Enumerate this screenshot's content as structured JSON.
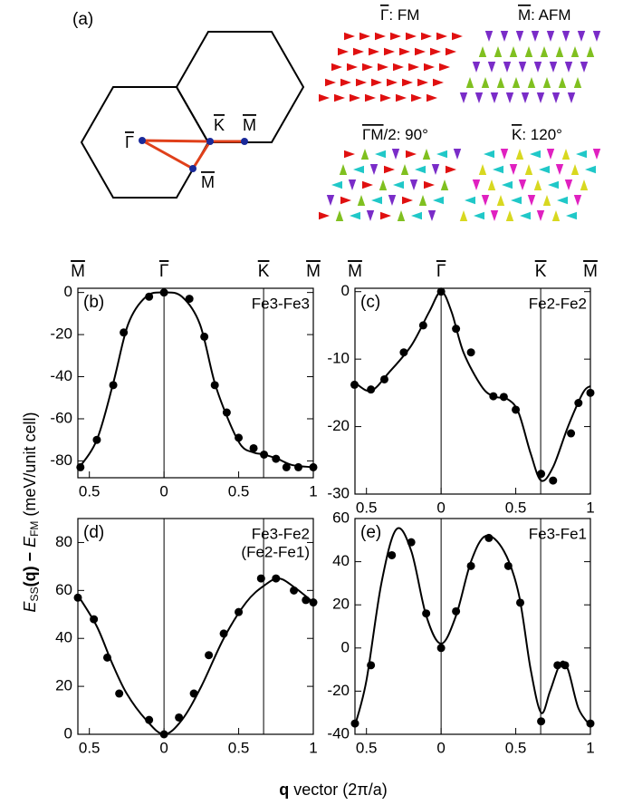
{
  "figure": {
    "ylabel": [
      "E",
      "SS",
      "(q) − ",
      "E",
      "FM",
      " (meV/unit cell)"
    ],
    "xlabel": [
      "q",
      " vector (2π/a)"
    ]
  },
  "diagram": {
    "tag": "(a)",
    "labels": [
      {
        "symbol": "Γ",
        "text": ""
      },
      {
        "symbol": "K",
        "text": ""
      },
      {
        "symbol": "M",
        "text": ""
      },
      {
        "symbol": "M",
        "text": ""
      }
    ],
    "configs": [
      {
        "symbol": "Γ",
        "text": ": FM"
      },
      {
        "symbol": "M",
        "text": ": AFM"
      },
      {
        "symbol": "ΓM",
        "text": "/2: 90°"
      },
      {
        "symbol": "K",
        "text": ": 120°"
      }
    ]
  },
  "chart_data": [
    {
      "type": "line",
      "tag": "(b)",
      "name": [
        "Fe3-Fe3"
      ],
      "xlim": [
        -0.577,
        1
      ],
      "xticks": [
        {
          "value": -0.5,
          "label": "0.5"
        },
        0,
        0.5,
        1
      ],
      "ylim": [
        -88,
        2
      ],
      "yticks": [
        -80,
        -60,
        -40,
        -20,
        0
      ],
      "vlines": [
        0,
        0.667
      ],
      "top_labels": [
        {
          "value": -0.577,
          "label": "M"
        },
        {
          "value": 0,
          "label": "Γ"
        },
        {
          "value": 0.667,
          "label": "K"
        },
        {
          "value": 1,
          "label": "M"
        }
      ],
      "points": {
        "x": [
          -0.56,
          -0.45,
          -0.34,
          -0.27,
          -0.1,
          0,
          0.17,
          0.27,
          0.34,
          0.42,
          0.5,
          0.6,
          0.67,
          0.75,
          0.82,
          0.9,
          1
        ],
        "y": [
          -83,
          -70,
          -44,
          -19,
          -2,
          0,
          -3,
          -21,
          -44,
          -57,
          -69,
          -74,
          -77,
          -79,
          -83,
          -83,
          -83
        ]
      },
      "curve": {
        "x": [
          -0.577,
          -0.45,
          -0.34,
          -0.24,
          -0.12,
          0,
          0.12,
          0.24,
          0.34,
          0.44,
          0.52,
          0.6,
          0.67,
          0.76,
          0.86,
          1
        ],
        "y": [
          -84,
          -70,
          -43,
          -15,
          -2,
          0,
          -2,
          -15,
          -43,
          -62,
          -73,
          -76,
          -77,
          -79,
          -82,
          -83
        ]
      },
      "color": "#000000"
    },
    {
      "type": "line",
      "tag": "(c)",
      "name": [
        "Fe2-Fe2"
      ],
      "xlim": [
        -0.577,
        1
      ],
      "xticks": [
        {
          "value": -0.5,
          "label": "0.5"
        },
        0,
        0.5,
        1
      ],
      "ylim": [
        -30,
        0.5
      ],
      "yticks": [
        -30,
        -20,
        -10,
        0
      ],
      "vlines": [
        0,
        0.667
      ],
      "top_labels": [
        {
          "value": -0.577,
          "label": "M"
        },
        {
          "value": 0,
          "label": "Γ"
        },
        {
          "value": 0.667,
          "label": "K"
        },
        {
          "value": 1,
          "label": "M"
        }
      ],
      "points": {
        "x": [
          -0.58,
          -0.47,
          -0.38,
          -0.25,
          -0.12,
          0,
          0.1,
          0.2,
          0.35,
          0.42,
          0.5,
          0.67,
          0.75,
          0.87,
          0.92,
          1
        ],
        "y": [
          -13.8,
          -14.5,
          -13,
          -9,
          -5,
          0,
          -5.5,
          -9,
          -15.5,
          -15.6,
          -17.5,
          -27,
          -28,
          -21,
          -16.5,
          -15
        ]
      },
      "curve": {
        "x": [
          -0.577,
          -0.47,
          -0.35,
          -0.2,
          -0.08,
          0,
          0.07,
          0.15,
          0.27,
          0.35,
          0.45,
          0.52,
          0.6,
          0.67,
          0.75,
          0.85,
          0.95,
          1
        ],
        "y": [
          -13.5,
          -14.7,
          -12,
          -8,
          -3,
          0,
          -3,
          -9,
          -14,
          -15.5,
          -16,
          -18,
          -24,
          -28,
          -26,
          -20,
          -15,
          -14
        ]
      },
      "color": "#000000"
    },
    {
      "type": "line",
      "tag": "(d)",
      "name": [
        "Fe3-Fe2",
        "(Fe2-Fe1)"
      ],
      "xlim": [
        -0.577,
        1
      ],
      "xticks": [
        {
          "value": -0.5,
          "label": "0.5"
        },
        0,
        0.5,
        1
      ],
      "ylim": [
        0,
        90
      ],
      "yticks": [
        0,
        20,
        40,
        60,
        80
      ],
      "vlines": [
        0,
        0.667
      ],
      "points": {
        "x": [
          -0.577,
          -0.47,
          -0.38,
          -0.3,
          -0.1,
          0,
          0.1,
          0.2,
          0.3,
          0.4,
          0.5,
          0.65,
          0.75,
          0.87,
          0.95,
          1
        ],
        "y": [
          57,
          48,
          32,
          17,
          6,
          0,
          7,
          17,
          33,
          42,
          51,
          65,
          65,
          60,
          56,
          55
        ]
      },
      "curve": {
        "x": [
          -0.577,
          -0.45,
          -0.35,
          -0.25,
          -0.12,
          0,
          0.12,
          0.25,
          0.4,
          0.55,
          0.67,
          0.77,
          0.88,
          1
        ],
        "y": [
          58,
          45,
          30,
          17,
          6,
          0,
          6,
          20,
          40,
          55,
          62,
          65,
          61,
          55
        ]
      },
      "color": "#000000"
    },
    {
      "type": "line",
      "tag": "(e)",
      "name": [
        "Fe3-Fe1"
      ],
      "xlim": [
        -0.577,
        1
      ],
      "xticks": [
        {
          "value": -0.5,
          "label": "0.5"
        },
        0,
        0.5,
        1
      ],
      "ylim": [
        -40,
        60
      ],
      "yticks": [
        -40,
        -20,
        0,
        20,
        40,
        60
      ],
      "vlines": [
        0,
        0.667
      ],
      "points": {
        "x": [
          -0.577,
          -0.47,
          -0.33,
          -0.2,
          -0.1,
          0,
          0.1,
          0.2,
          0.32,
          0.45,
          0.53,
          0.67,
          0.78,
          0.83,
          1
        ],
        "y": [
          -35,
          -8,
          43,
          49,
          16,
          0,
          17,
          38,
          51,
          38,
          21,
          -34,
          -8,
          -8,
          -35
        ]
      },
      "curve": {
        "x": [
          -0.577,
          -0.5,
          -0.4,
          -0.3,
          -0.2,
          -0.1,
          0,
          0.1,
          0.2,
          0.3,
          0.42,
          0.52,
          0.6,
          0.67,
          0.73,
          0.8,
          0.85,
          0.92,
          1
        ],
        "y": [
          -36,
          -15,
          30,
          55,
          45,
          15,
          2,
          15,
          40,
          52,
          45,
          25,
          -10,
          -30,
          -20,
          -7,
          -10,
          -28,
          -36
        ]
      },
      "color": "#000000"
    }
  ]
}
